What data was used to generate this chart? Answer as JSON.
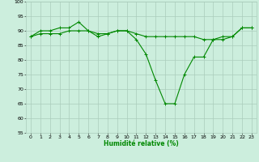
{
  "xlabel": "Humidité relative (%)",
  "background_color": "#cceedd",
  "grid_color": "#aaccbb",
  "line_color": "#008800",
  "ylim": [
    55,
    100
  ],
  "xlim": [
    -0.5,
    23.5
  ],
  "yticks": [
    55,
    60,
    65,
    70,
    75,
    80,
    85,
    90,
    95,
    100
  ],
  "xticks": [
    0,
    1,
    2,
    3,
    4,
    5,
    6,
    7,
    8,
    9,
    10,
    11,
    12,
    13,
    14,
    15,
    16,
    17,
    18,
    19,
    20,
    21,
    22,
    23
  ],
  "series1_x": [
    0,
    1,
    2,
    3,
    4,
    5,
    6,
    7,
    8,
    9,
    10,
    11,
    12,
    13,
    14,
    15,
    16,
    17,
    18,
    19,
    20,
    21,
    22,
    23
  ],
  "series1_y": [
    88,
    90,
    90,
    91,
    91,
    93,
    90,
    89,
    89,
    90,
    90,
    87,
    82,
    73,
    65,
    65,
    75,
    81,
    81,
    87,
    87,
    88,
    91,
    91
  ],
  "series2_x": [
    0,
    1,
    2,
    3,
    4,
    5,
    6,
    7,
    8,
    9,
    10,
    11,
    12,
    13,
    14,
    15,
    16,
    17,
    18,
    19,
    20,
    21,
    22,
    23
  ],
  "series2_y": [
    88,
    89,
    89,
    89,
    90,
    90,
    90,
    88,
    89,
    90,
    90,
    89,
    88,
    88,
    88,
    88,
    88,
    88,
    87,
    87,
    88,
    88,
    91,
    91
  ]
}
